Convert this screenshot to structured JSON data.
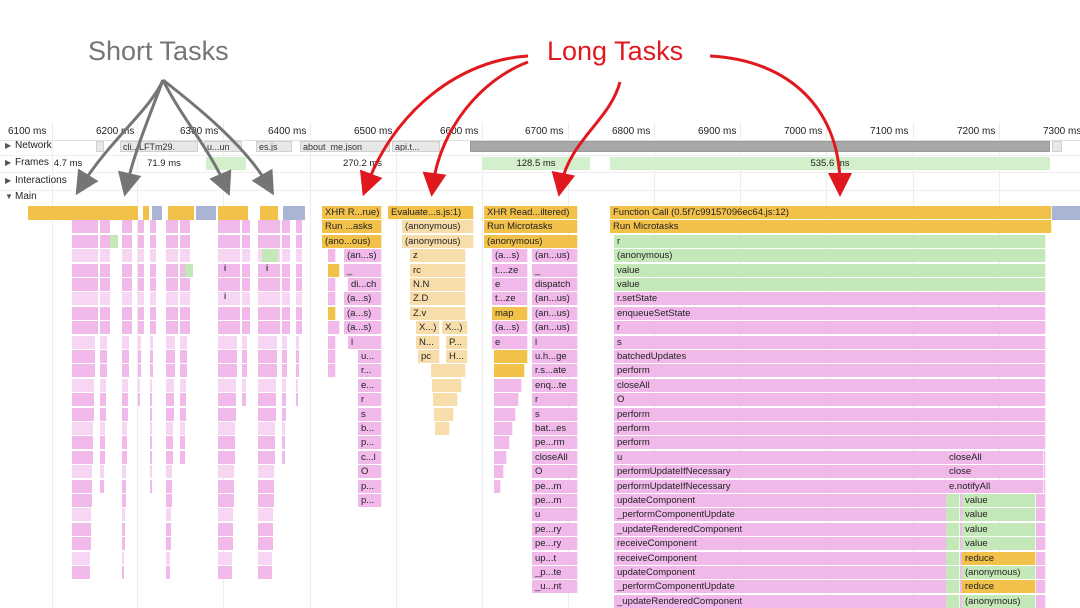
{
  "annotations": {
    "short_tasks": "Short Tasks",
    "long_tasks": "Long Tasks"
  },
  "colors": {
    "annotation_gray": "#757575",
    "annotation_red": "#e0191f",
    "scripting_yellow": "#f2c14a",
    "rendering_purple": "#f0b9ea",
    "frames_green": "#d4efcb"
  },
  "ruler": {
    "ticks": [
      "6100 ms",
      "6200 ms",
      "6300 ms",
      "6400 ms",
      "6500 ms",
      "6600 ms",
      "6700 ms",
      "6800 ms",
      "6900 ms",
      "7000 ms",
      "7100 ms",
      "7200 ms",
      "7300 ms"
    ]
  },
  "tracks": {
    "network": "Network",
    "frames": "Frames",
    "interactions": "Interactions",
    "main": "Main"
  },
  "network_labels": [
    "cli...LFTm29.",
    "u...un",
    "es.js",
    "about_me.json",
    "api.t..."
  ],
  "frame_labels": [
    "4.7 ms",
    "71.9 ms",
    "270.2 ms",
    "128.5 ms",
    "535.6 ms"
  ],
  "flame": {
    "col_xhr1": [
      "XHR R...rue)",
      "Run ...asks",
      "(ano...ous)",
      "(an...s)",
      "_",
      "di...ch",
      "(a...s)",
      "(a...s)",
      "(a...s)",
      "l",
      "u...",
      "r...",
      "e...",
      "r",
      "s",
      "b...",
      "p...",
      "c...l",
      "O",
      "p...",
      "p..."
    ],
    "col_eval": [
      "Evaluate...s.js:1)",
      "(anonymous)",
      "(anonymous)",
      "z",
      "rc",
      "N.N",
      "Z.D",
      "Z.v",
      "X...)",
      "N...",
      "pc"
    ],
    "col_eval_b": [
      "X...)",
      "P...",
      "H..."
    ],
    "col_xhr2": [
      "XHR Read...iltered)",
      "Run Microtasks",
      "(anonymous)"
    ],
    "col_xhr2_left": [
      "(a...s)",
      "t....ze",
      "e",
      "t...ze",
      "map",
      "(a...s)",
      "e"
    ],
    "col_xhr2_right": [
      "(an...us)",
      "_",
      "dispatch",
      "(an...us)",
      "(an...us)",
      "(an...us)",
      "l",
      "u.h...ge",
      "r.s...ate",
      "enq...te",
      "r",
      "s",
      "bat...es",
      "pe...rm",
      "closeAll",
      "O",
      "pe...m",
      "pe...m",
      "u",
      "pe...ry",
      "pe...ry",
      "up...t",
      "_p...te",
      "_u...nt"
    ],
    "col_main_top": [
      "Function Call (0.5f7c99157096ec64.js:12)",
      "Run Microtasks"
    ],
    "col_main": [
      "r",
      "(anonymous)",
      "value",
      "value",
      "r.setState",
      "enqueueSetState",
      "r",
      "s",
      "batchedUpdates",
      "perform",
      "closeAll",
      "O",
      "perform",
      "perform",
      "perform",
      "u",
      "performUpdateIfNecessary",
      "performUpdateIfNecessary",
      "updateComponent",
      "_performComponentUpdate",
      "_updateRenderedComponent",
      "receiveComponent",
      "receiveComponent",
      "updateComponent",
      "_performComponentUpdate",
      "_updateRenderedComponent"
    ],
    "col_right_a": [
      "closeAll",
      "close",
      "e.notifyAll"
    ],
    "col_right_b": [
      "value",
      "value",
      "value",
      "value",
      "reduce",
      "(anonymous)",
      "reduce",
      "(anonymous)"
    ],
    "short_i_labels": [
      "i",
      "i",
      "i"
    ]
  }
}
